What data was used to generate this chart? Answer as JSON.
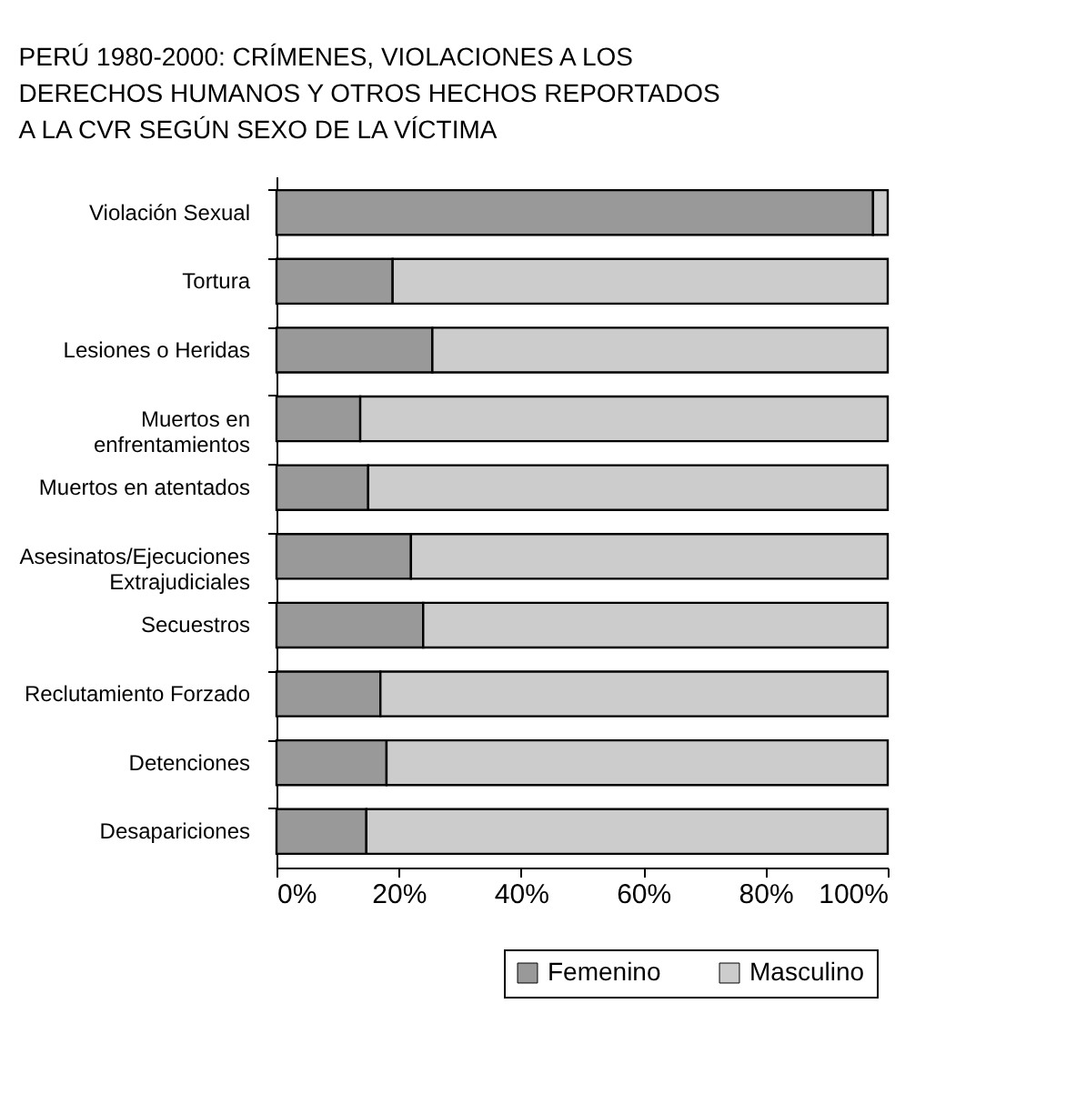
{
  "chart_data": {
    "type": "bar",
    "orientation": "horizontal",
    "stacked": true,
    "title": "PERÚ 1980-2000: CRÍMENES, VIOLACIONES A LOS\nDERECHOS HUMANOS Y OTROS HECHOS REPORTADOS\nA LA CVR SEGÚN SEXO DE LA VÍCTIMA",
    "categories": [
      "Violación Sexual",
      "Tortura",
      "Lesiones o Heridas",
      "Muertos en\nenfrentamientos",
      "Muertos en atentados",
      "Asesinatos/Ejecuciones\nExtrajudiciales",
      "Secuestros",
      "Reclutamiento Forzado",
      "Detenciones",
      "Desapariciones"
    ],
    "series": [
      {
        "name": "Femenino",
        "color": "#999999",
        "values": [
          97.6,
          19,
          25.5,
          13.7,
          15,
          22,
          24,
          17,
          18,
          14.7
        ]
      },
      {
        "name": "Masculino",
        "color": "#cccccc",
        "values": [
          2.4,
          81,
          74.5,
          86.3,
          85,
          78,
          76,
          83,
          82,
          85.3
        ]
      }
    ],
    "xlim": [
      0,
      100
    ],
    "xticks": [
      {
        "value": 0,
        "label": "0%"
      },
      {
        "value": 20,
        "label": "20%"
      },
      {
        "value": 40,
        "label": "40%"
      },
      {
        "value": 60,
        "label": "60%"
      },
      {
        "value": 80,
        "label": "80%"
      },
      {
        "value": 100,
        "label": "100%"
      }
    ],
    "grid": false,
    "legend": "bottom right"
  }
}
